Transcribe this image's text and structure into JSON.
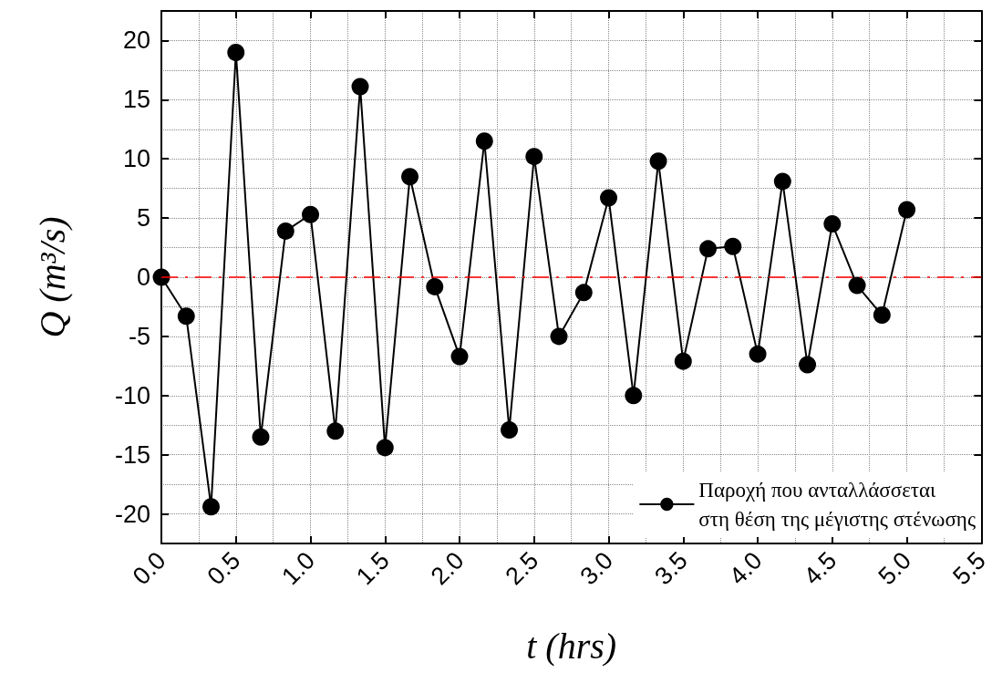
{
  "chart_data": {
    "type": "line",
    "xlabel": "t (hrs)",
    "ylabel": "Q (m³/s)",
    "x": [
      0,
      0.1667,
      0.3333,
      0.5,
      0.6667,
      0.8333,
      1.0,
      1.1667,
      1.3333,
      1.5,
      1.6667,
      1.8333,
      2.0,
      2.1667,
      2.3333,
      2.5,
      2.6667,
      2.8333,
      3.0,
      3.1667,
      3.3333,
      3.5,
      3.6667,
      3.8333,
      4.0,
      4.1667,
      4.3333,
      4.5,
      4.6667,
      4.8333,
      5.0
    ],
    "series": [
      {
        "name": "Παροχή που ανταλλάσσεται\nστη θέση της μέγιστης στένωσης",
        "color": "#000000",
        "values": [
          0,
          -3.3,
          -19.4,
          19.0,
          -13.5,
          3.9,
          5.3,
          -13.0,
          16.1,
          -14.4,
          8.5,
          -0.8,
          -6.7,
          11.5,
          -12.9,
          10.2,
          -5.0,
          -1.3,
          6.7,
          -10.0,
          9.8,
          -7.1,
          2.4,
          2.6,
          -6.5,
          8.1,
          -7.4,
          4.5,
          -0.7,
          -3.2,
          5.7
        ]
      }
    ],
    "xlim": [
      0,
      5.5
    ],
    "xticks": [
      {
        "value": 0,
        "label": "0.0"
      },
      0.5,
      {
        "value": 1,
        "label": "1.0"
      },
      1.5,
      {
        "value": 2,
        "label": "2.0"
      },
      2.5,
      {
        "value": 3,
        "label": "3.0"
      },
      3.5,
      {
        "value": 4,
        "label": "4.0"
      },
      4.5,
      {
        "value": 5,
        "label": "5.0"
      },
      5.5
    ],
    "ylim": [
      -22.5,
      22.5
    ],
    "yticks": [
      -20,
      -15,
      -10,
      -5,
      0,
      5,
      10,
      15,
      20
    ],
    "ref_lines": [
      {
        "axis": "y",
        "value": 0,
        "color": "#ff0000",
        "line_style": "dashed"
      }
    ],
    "grid": true,
    "legend": "bottom right",
    "marker": "circle",
    "line_style": "solid"
  }
}
